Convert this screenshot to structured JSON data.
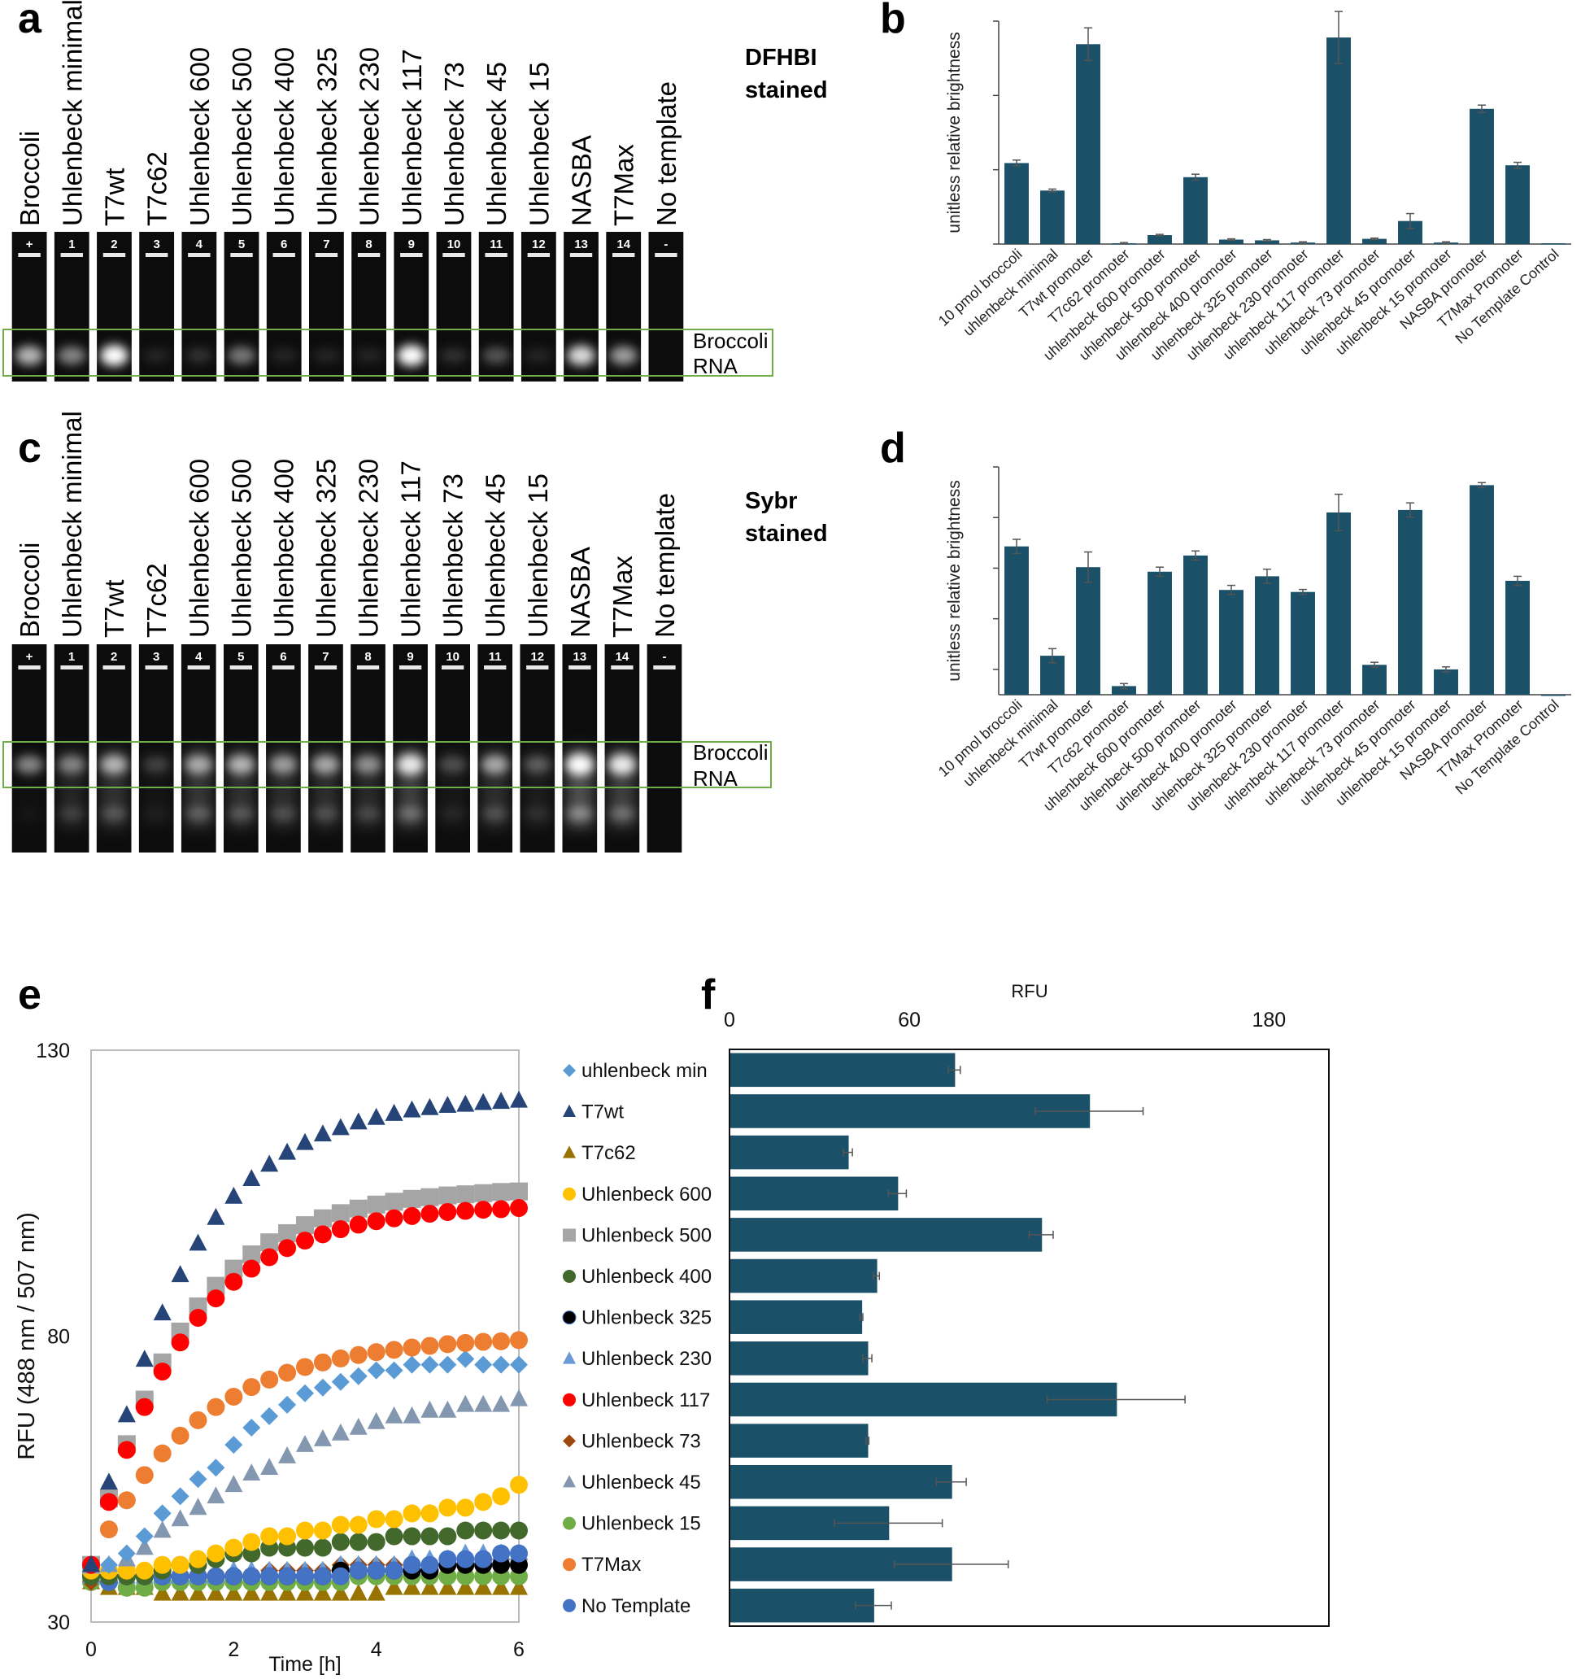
{
  "panel_letters": {
    "a": "a",
    "b": "b",
    "c": "c",
    "d": "d",
    "e": "e",
    "f": "f"
  },
  "gels": [
    {
      "id": "a",
      "stain_line1": "DFHBI",
      "stain_line2": "stained",
      "band_label_line1": "Broccoli",
      "band_label_line2": "RNA",
      "box_color": "#70ad47",
      "lane_labels": [
        "Broccoli",
        "Uhlenbeck minimal",
        "T7wt",
        "T7c62",
        "Uhlenbeck 600",
        "Uhlenbeck 500",
        "Uhlenbeck 400",
        "Uhlenbeck 325",
        "Uhlenbeck 230",
        "Uhlenbeck 117",
        "Uhlenbeck 73",
        "Uhlenbeck 45",
        "Uhlenbeck 15",
        "NASBA",
        "T7Max",
        "No template"
      ],
      "lane_numbers": [
        "+",
        "1",
        "2",
        "3",
        "4",
        "5",
        "6",
        "7",
        "8",
        "9",
        "10",
        "11",
        "12",
        "13",
        "14",
        "-"
      ],
      "band_intensity": [
        0.7,
        0.5,
        1.0,
        0.1,
        0.15,
        0.45,
        0.1,
        0.1,
        0.1,
        1.0,
        0.15,
        0.3,
        0.1,
        0.85,
        0.6,
        0.0
      ],
      "smear_intensity": [
        0,
        0,
        0,
        0,
        0,
        0,
        0,
        0,
        0,
        0,
        0,
        0,
        0,
        0,
        0,
        0
      ]
    },
    {
      "id": "c",
      "stain_line1": "Sybr",
      "stain_line2": "stained",
      "band_label_line1": "Broccoli",
      "band_label_line2": "RNA",
      "box_color": "#70ad47",
      "lane_labels": [
        "Broccoli",
        "Uhlenbeck minimal",
        "T7wt",
        "T7c62",
        "Uhlenbeck 600",
        "Uhlenbeck 500",
        "Uhlenbeck 400",
        "Uhlenbeck 325",
        "Uhlenbeck 230",
        "Uhlenbeck 117",
        "Uhlenbeck 73",
        "Uhlenbeck 45",
        "Uhlenbeck 15",
        "NASBA",
        "T7Max",
        "No template"
      ],
      "lane_numbers": [
        "+",
        "1",
        "2",
        "3",
        "4",
        "5",
        "6",
        "7",
        "8",
        "9",
        "10",
        "11",
        "12",
        "13",
        "14",
        "-"
      ],
      "band_intensity": [
        0.5,
        0.45,
        0.65,
        0.2,
        0.6,
        0.65,
        0.55,
        0.6,
        0.5,
        0.9,
        0.25,
        0.6,
        0.3,
        1.0,
        0.9,
        0.0
      ],
      "smear_intensity": [
        0.05,
        0.3,
        0.45,
        0.1,
        0.5,
        0.45,
        0.4,
        0.4,
        0.35,
        0.6,
        0.15,
        0.4,
        0.2,
        0.8,
        0.6,
        0.0
      ]
    }
  ],
  "chart_data": [
    {
      "id": "b",
      "type": "bar",
      "title": "",
      "xlabel": "",
      "ylabel": "unitless relative brightness",
      "ylim": [
        0,
        3
      ],
      "yticks": [
        0,
        1,
        2,
        3
      ],
      "ytick_labels_shown": false,
      "color": "#1a5068",
      "categories": [
        "10 pmol broccoli",
        "uhlenbeck minimal",
        "T7wt promoter",
        "T7c62 promoter",
        "uhlenbeck 600 promoter",
        "uhlenbeck 500 promoter",
        "uhlenbeck 400 promoter",
        "uhlenbeck 325 promoter",
        "uhlenbeck 230 promoter",
        "uhlenbeck 117 promoter",
        "uhlenbeck 73 promoter",
        "uhlenbeck 45 promoter",
        "uhlenbeck 15 promoter",
        "NASBA promoter",
        "T7Max Promoter",
        "No Template Control"
      ],
      "values": [
        1.09,
        0.72,
        2.69,
        0.01,
        0.12,
        0.9,
        0.06,
        0.05,
        0.02,
        2.78,
        0.07,
        0.31,
        0.02,
        1.82,
        1.06,
        0.01
      ],
      "errors": [
        0.04,
        0.02,
        0.22,
        0.01,
        0.01,
        0.04,
        0.01,
        0.01,
        0.01,
        0.35,
        0.01,
        0.1,
        0.01,
        0.05,
        0.04,
        0.0
      ]
    },
    {
      "id": "d",
      "type": "bar",
      "title": "",
      "xlabel": "",
      "ylabel": "unitless relative brightness",
      "ylim": [
        0,
        4.5
      ],
      "yticks": [
        0.5,
        1.5,
        2.5,
        3.5,
        4.5
      ],
      "ytick_labels_shown": false,
      "color": "#1a5068",
      "categories": [
        "10 pmol broccoli",
        "uhlenbeck minimal",
        "T7wt promoter",
        "T7c62 promoter",
        "uhlenbeck 600 promoter",
        "uhlenbeck 500 promoter",
        "uhlenbeck 400 promoter",
        "uhlenbeck 325 promoter",
        "uhlenbeck 230 promoter",
        "uhlenbeck 117 promoter",
        "uhlenbeck 73 promoter",
        "uhlenbeck 45 promoter",
        "uhlenbeck 15 promoter",
        "NASBA promoter",
        "T7Max Promoter",
        "No Template Control"
      ],
      "values": [
        2.93,
        0.77,
        2.52,
        0.17,
        2.43,
        2.75,
        2.07,
        2.34,
        2.03,
        3.6,
        0.59,
        3.65,
        0.5,
        4.14,
        2.25,
        0.0
      ],
      "errors": [
        0.14,
        0.14,
        0.3,
        0.05,
        0.09,
        0.09,
        0.09,
        0.14,
        0.05,
        0.36,
        0.05,
        0.14,
        0.05,
        0.05,
        0.09,
        0.0
      ]
    },
    {
      "id": "e",
      "type": "scatter",
      "title": "",
      "xlabel": "Time [h]",
      "ylabel": "RFU (488 nm / 507 nm)",
      "xlim": [
        0,
        6
      ],
      "ylim": [
        30,
        130
      ],
      "xticks": [
        0,
        2,
        4,
        6
      ],
      "yticks": [
        30,
        80,
        130
      ],
      "legend": "right",
      "x": [
        0,
        0.25,
        0.5,
        0.75,
        1,
        1.25,
        1.5,
        1.75,
        2,
        2.25,
        2.5,
        2.75,
        3,
        3.25,
        3.5,
        3.75,
        4,
        4.25,
        4.5,
        4.75,
        5,
        5.25,
        5.5,
        5.75,
        6
      ],
      "series": [
        {
          "name": "uhlenbeck min",
          "marker": "diamond",
          "color": "#5b9bd5",
          "values": [
            40,
            40,
            42,
            45,
            49,
            52,
            55,
            57,
            61,
            64,
            66,
            68,
            70,
            71,
            72,
            73,
            74,
            74,
            75,
            75,
            75,
            76,
            75,
            75,
            75
          ]
        },
        {
          "name": "T7wt",
          "marker": "triangle",
          "color": "#264478",
          "values": [
            40,
            54.4,
            66.2,
            75.9,
            84.0,
            90.7,
            96.2,
            100.7,
            104.4,
            107.5,
            110.0,
            112.1,
            113.8,
            115.3,
            116.4,
            117.4,
            118.2,
            118.9,
            119.5,
            119.9,
            120.3,
            120.5,
            120.8,
            121.0,
            121.2
          ]
        },
        {
          "name": "T7c62",
          "marker": "triangle",
          "color": "#997300",
          "values": [
            37,
            36,
            36,
            36,
            35,
            35,
            35,
            35,
            35,
            35,
            35,
            35,
            35,
            35,
            35,
            35,
            35,
            36,
            36,
            36,
            36,
            36,
            36,
            36,
            36
          ]
        },
        {
          "name": "Uhlenbeck 600",
          "marker": "circle",
          "color": "#ffc000",
          "values": [
            39,
            39,
            39,
            39,
            40,
            40,
            41,
            42,
            43,
            44,
            45,
            45,
            46,
            46,
            47,
            47,
            48,
            48,
            49,
            49,
            50,
            50,
            51,
            52,
            54
          ]
        },
        {
          "name": "Uhlenbeck 500",
          "marker": "square",
          "color": "#a5a5a5",
          "values": [
            40,
            51.6,
            61.1,
            68.9,
            75.4,
            80.8,
            85.2,
            88.8,
            91.8,
            94.3,
            96.4,
            98.0,
            99.4,
            100.6,
            101.5,
            102.3,
            103.0,
            103.5,
            104.0,
            104.3,
            104.6,
            104.8,
            105.0,
            105.2,
            105.3
          ]
        },
        {
          "name": "Uhlenbeck 400",
          "marker": "circle",
          "color": "#43682b",
          "values": [
            38,
            38,
            38,
            38,
            39,
            40,
            40,
            41,
            42,
            42,
            43,
            43,
            43,
            43,
            44,
            44,
            44,
            45,
            45,
            45,
            45,
            46,
            46,
            46,
            46
          ]
        },
        {
          "name": "Uhlenbeck 325",
          "marker": "circle",
          "color": "#000000",
          "values": [
            38,
            38,
            38,
            38,
            38,
            38,
            38,
            38,
            38,
            38,
            38,
            38,
            38,
            38,
            39,
            39,
            39,
            39,
            39,
            39,
            40,
            40,
            40,
            40,
            40
          ]
        },
        {
          "name": "Uhlenbeck 230",
          "marker": "triangle",
          "color": "#6a9bd8",
          "values": [
            38,
            38,
            38,
            38,
            38,
            38,
            38,
            38,
            39,
            39,
            39,
            39,
            39,
            39,
            40,
            40,
            40,
            40,
            41,
            41,
            41,
            42,
            42,
            42,
            42
          ]
        },
        {
          "name": "Uhlenbeck 117",
          "marker": "circle",
          "color": "#ff0000",
          "values": [
            40,
            51,
            60.1,
            67.6,
            73.8,
            78.9,
            83.2,
            86.6,
            89.5,
            91.8,
            93.8,
            95.4,
            96.7,
            97.8,
            98.7,
            99.5,
            100.1,
            100.6,
            101.0,
            101.4,
            101.7,
            101.9,
            102.1,
            102.2,
            102.4
          ]
        },
        {
          "name": "Uhlenbeck 73",
          "marker": "diamond",
          "color": "#9e480e",
          "values": [
            37,
            37,
            38,
            38,
            38,
            38,
            38,
            38,
            38,
            38,
            39,
            39,
            39,
            39,
            40,
            40,
            40,
            40,
            40,
            40,
            40,
            41,
            41,
            41,
            41
          ]
        },
        {
          "name": "Uhlenbeck 45",
          "marker": "triangle",
          "color": "#8497b0",
          "values": [
            40,
            40,
            41,
            43,
            46,
            48,
            50,
            52,
            54,
            56,
            57,
            59,
            61,
            62,
            63,
            64,
            65,
            66,
            66,
            67,
            67,
            68,
            68,
            68,
            69
          ]
        },
        {
          "name": "Uhlenbeck 15",
          "marker": "circle",
          "color": "#70ad47",
          "values": [
            37,
            37,
            36,
            36,
            37,
            37,
            37,
            37,
            37,
            37,
            37,
            37,
            37,
            37,
            37,
            38,
            38,
            38,
            38,
            38,
            38,
            38,
            38,
            38,
            38
          ]
        },
        {
          "name": "T7Max",
          "marker": "circle",
          "color": "#ed7d31",
          "values": [
            40,
            46.2,
            51.3,
            55.7,
            59.5,
            62.6,
            65.3,
            67.6,
            69.4,
            71.1,
            72.4,
            73.6,
            74.6,
            75.4,
            76.1,
            76.7,
            77.2,
            77.6,
            78.0,
            78.3,
            78.6,
            78.8,
            79.0,
            79.1,
            79.3
          ]
        },
        {
          "name": "No Template",
          "marker": "circle",
          "color": "#4472c4",
          "values": [
            38,
            37,
            38,
            38,
            38,
            38,
            38,
            38,
            38,
            38,
            38,
            38,
            38,
            38,
            38,
            39,
            39,
            39,
            40,
            40,
            41,
            41,
            41,
            42,
            42
          ]
        }
      ]
    },
    {
      "id": "f",
      "type": "bar",
      "orientation": "horizontal",
      "title": "",
      "xlabel": "RFU",
      "ylabel": "",
      "xlim": [
        0,
        200
      ],
      "xticks": [
        0,
        60,
        180
      ],
      "color": "#1a5068",
      "categories": [
        "uhlenbeck min",
        "T7wt",
        "T7c62",
        "Uhlenbeck 600",
        "Uhlenbeck 500",
        "Uhlenbeck 400",
        "Uhlenbeck 325",
        "Uhlenbeck 230",
        "Uhlenbeck 117",
        "Uhlenbeck 73",
        "Uhlenbeck 45",
        "Uhlenbeck 15",
        "T7Max",
        "No Template"
      ],
      "values": [
        75,
        120,
        39.5,
        56,
        104,
        49,
        44,
        46,
        129,
        46,
        74,
        53,
        74,
        48
      ],
      "errors": [
        2,
        18,
        1.5,
        3,
        4,
        1,
        0.5,
        1.5,
        23,
        0.5,
        5,
        18,
        19,
        6
      ]
    }
  ]
}
